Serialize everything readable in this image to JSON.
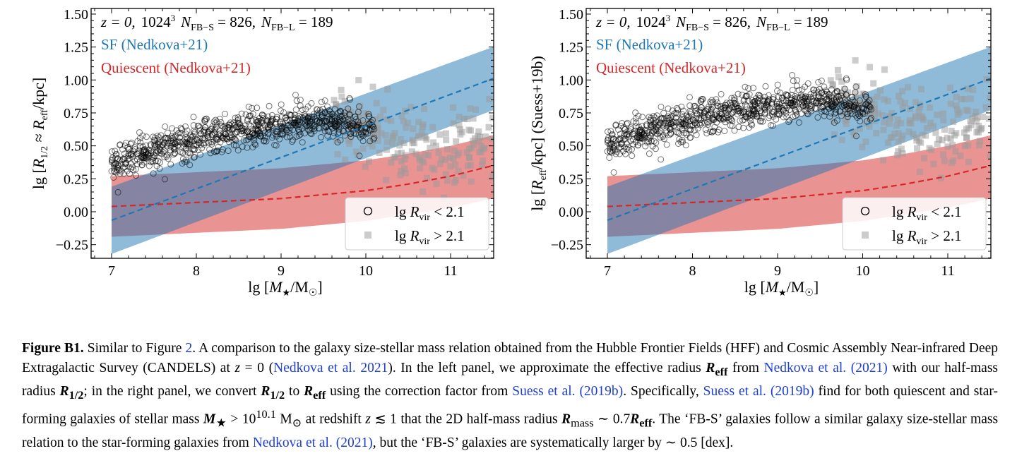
{
  "chart_data": [
    {
      "type": "scatter",
      "panel": "left",
      "title": "",
      "xlabel": "lg [M★/M☉]",
      "ylabel": "lg [R1/2 ≈ Reff/kpc]",
      "xlim": [
        6.76,
        11.5
      ],
      "ylim": [
        -0.35,
        1.54
      ],
      "xticks": [
        7,
        8,
        9,
        10,
        11
      ],
      "xtick_labels": [
        "7",
        "8",
        "9",
        "10",
        "11"
      ],
      "yticks": [
        -0.25,
        0.0,
        0.25,
        0.5,
        0.75,
        1.0,
        1.25,
        1.5
      ],
      "ytick_labels": [
        "−0.25",
        "0.00",
        "0.25",
        "0.50",
        "0.75",
        "1.00",
        "1.25",
        "1.50"
      ],
      "grid": false,
      "annotation": "z = 0,  1024³,  N_FB−S = 826,  N_FB−L = 189",
      "annotation_parts": {
        "z": "z = 0,",
        "res": "1024",
        "res_sup": "3",
        "ns_label": "N",
        "ns_sub": "FB−S",
        "ns_val": " = 826,",
        "nl_label": "N",
        "nl_sub": "FB−L",
        "nl_val": " = 189"
      },
      "bands": [
        {
          "name": "SF (Nedkova+21)",
          "color": "#1f77b4",
          "x": [
            7.0,
            11.5
          ],
          "lower": [
            -0.32,
            0.77
          ],
          "upper": [
            0.19,
            1.25
          ],
          "median": [
            -0.065,
            1.01
          ]
        },
        {
          "name": "Quiescent (Nedkova+21)",
          "color": "#d62728",
          "x": [
            7.0,
            8.0,
            9.0,
            10.0,
            10.5,
            11.0,
            11.5
          ],
          "lower": [
            -0.19,
            -0.16,
            -0.13,
            -0.07,
            -0.02,
            0.03,
            0.1
          ],
          "upper": [
            0.27,
            0.3,
            0.33,
            0.39,
            0.44,
            0.5,
            0.58
          ],
          "median": [
            0.04,
            0.07,
            0.1,
            0.16,
            0.21,
            0.27,
            0.35
          ]
        }
      ],
      "series": [
        {
          "name": "lg R_vir < 2.1",
          "marker": "open-circle",
          "color": "#000000",
          "count": 826,
          "trend": {
            "x": [
              7.0,
              7.5,
              8.0,
              8.5,
              9.0,
              9.5,
              10.0
            ],
            "y": [
              0.36,
              0.46,
              0.56,
              0.62,
              0.66,
              0.7,
              0.64
            ]
          },
          "scatter_dex": 0.07
        },
        {
          "name": "lg R_vir > 2.1",
          "marker": "filled-square",
          "color": "#999999",
          "count": 189,
          "trend": {
            "x": [
              9.6,
              10.0,
              10.5,
              11.0,
              11.5
            ],
            "y": [
              0.68,
              0.62,
              0.52,
              0.48,
              0.5
            ]
          },
          "scatter_dex": 0.16
        }
      ],
      "legend": {
        "placement": "lower-right",
        "entries": [
          {
            "label_main": "lg ",
            "label_R": "R",
            "label_sub": "vir",
            "label_rest": " < 2.1"
          },
          {
            "label_main": "lg ",
            "label_R": "R",
            "label_sub": "vir",
            "label_rest": " > 2.1"
          }
        ]
      }
    },
    {
      "type": "scatter",
      "panel": "right",
      "title": "",
      "xlabel": "lg [M★/M☉]",
      "ylabel": "lg [Reff/kpc] (Suess+19b)",
      "xlim": [
        6.76,
        11.5
      ],
      "ylim": [
        -0.35,
        1.54
      ],
      "xticks": [
        7,
        8,
        9,
        10,
        11
      ],
      "xtick_labels": [
        "7",
        "8",
        "9",
        "10",
        "11"
      ],
      "yticks": [
        -0.25,
        0.0,
        0.25,
        0.5,
        0.75,
        1.0,
        1.25,
        1.5
      ],
      "ytick_labels": [
        "−0.25",
        "0.00",
        "0.25",
        "0.50",
        "0.75",
        "1.00",
        "1.25",
        "1.50"
      ],
      "grid": false,
      "annotation": "z = 0,  1024³,  N_FB−S = 826,  N_FB−L = 189",
      "annotation_parts": {
        "z": "z = 0,",
        "res": "1024",
        "res_sup": "3",
        "ns_label": "N",
        "ns_sub": "FB−S",
        "ns_val": " = 826,",
        "nl_label": "N",
        "nl_sub": "FB−L",
        "nl_val": " = 189"
      },
      "bands": [
        {
          "name": "SF (Nedkova+21)",
          "color": "#1f77b4",
          "x": [
            7.0,
            11.5
          ],
          "lower": [
            -0.32,
            0.77
          ],
          "upper": [
            0.19,
            1.25
          ],
          "median": [
            -0.065,
            1.01
          ]
        },
        {
          "name": "Quiescent (Nedkova+21)",
          "color": "#d62728",
          "x": [
            7.0,
            8.0,
            9.0,
            10.0,
            10.5,
            11.0,
            11.5
          ],
          "lower": [
            -0.19,
            -0.16,
            -0.13,
            -0.07,
            -0.02,
            0.03,
            0.1
          ],
          "upper": [
            0.27,
            0.3,
            0.33,
            0.39,
            0.44,
            0.5,
            0.58
          ],
          "median": [
            0.04,
            0.07,
            0.1,
            0.16,
            0.21,
            0.27,
            0.35
          ]
        }
      ],
      "series": [
        {
          "name": "lg R_vir < 2.1",
          "marker": "open-circle",
          "color": "#000000",
          "count": 826,
          "trend": {
            "x": [
              7.0,
              7.5,
              8.0,
              8.5,
              9.0,
              9.5,
              10.0
            ],
            "y": [
              0.51,
              0.61,
              0.71,
              0.77,
              0.81,
              0.85,
              0.79
            ]
          },
          "scatter_dex": 0.07
        },
        {
          "name": "lg R_vir > 2.1",
          "marker": "filled-square",
          "color": "#999999",
          "count": 189,
          "trend": {
            "x": [
              9.6,
              10.0,
              10.5,
              11.0,
              11.5
            ],
            "y": [
              0.83,
              0.77,
              0.67,
              0.63,
              0.65
            ]
          },
          "scatter_dex": 0.16
        }
      ],
      "legend": {
        "placement": "lower-right",
        "entries": [
          {
            "label_main": "lg ",
            "label_R": "R",
            "label_sub": "vir",
            "label_rest": " < 2.1"
          },
          {
            "label_main": "lg ",
            "label_R": "R",
            "label_sub": "vir",
            "label_rest": " > 2.1"
          }
        ]
      }
    }
  ],
  "labels": {
    "sf": "SF (Nedkova+21)",
    "quiescent": "Quiescent (Nedkova+21)",
    "xlabel_prefix": "lg [",
    "xlabel_M": "M",
    "xlabel_star": "★",
    "xlabel_rest": "/M",
    "xlabel_sun": "☉",
    "xlabel_close": "]",
    "ylabel_left_a": "lg [",
    "ylabel_left_R": "R",
    "ylabel_left_sub": "1/2",
    "ylabel_left_b": " ≈ ",
    "ylabel_left_R2": "R",
    "ylabel_left_sub2": "eff",
    "ylabel_left_c": "/kpc]",
    "ylabel_right_a": "lg [",
    "ylabel_right_R": "R",
    "ylabel_right_sub": "eff",
    "ylabel_right_c": "/kpc] (Suess+19b)"
  },
  "caption": {
    "label": "Figure B1.",
    "s1": " Similar to Figure ",
    "fig_ref": "2",
    "s2": ". A comparison to the galaxy size-stellar mass relation obtained from the Hubble Frontier Fields (HFF) and Cosmic Assembly Near-infrared Deep Extragalactic Survey (CANDELS) at ",
    "z_eq": "z",
    "s3": " = 0 (",
    "ref_nedkova_paren": "Nedkova et al. 2021",
    "s4": "). In the left panel, we approximate the effective radius ",
    "Reff_R": "R",
    "Reff_sub": "eff",
    "s5": " from ",
    "ref_nedkova_1": "Nedkova et al.",
    "s5b": " ",
    "ref_nedkova_1_year": "(2021)",
    "s6": " with our half-mass radius ",
    "Rhalf_R": "R",
    "Rhalf_sub": "1/2",
    "s7": "; in the right panel, we convert ",
    "s8": " to ",
    "s9": " using the correction factor from ",
    "ref_suess_1": "Suess et al. (2019b)",
    "s10": ". Specifically, ",
    "ref_suess_2": "Suess et al.",
    "ref_suess_2_year": "(2019b)",
    "s11": " find for both quiescent and star-forming galaxies of stellar mass ",
    "Mstar_M": "M",
    "Mstar_sub": "★",
    "s12": " > 10",
    "pow": "10.1",
    "s13": " M",
    "sun": "⊙",
    "s14": " at redshift ",
    "s15": " ≲ 1 that the 2D half-mass radius ",
    "Rmass_R": "R",
    "Rmass_sub": "mass",
    "s16": " ∼ 0.7",
    "s17": ". The ‘FB-S’ galaxies follow a similar galaxy size-stellar mass relation to the star-forming galaxies from ",
    "ref_nedkova_2": "Nedkova et al. (2021)",
    "s18": ", but the ‘FB-S’ galaxies are systematically larger by ∼ 0.5 [dex]."
  }
}
